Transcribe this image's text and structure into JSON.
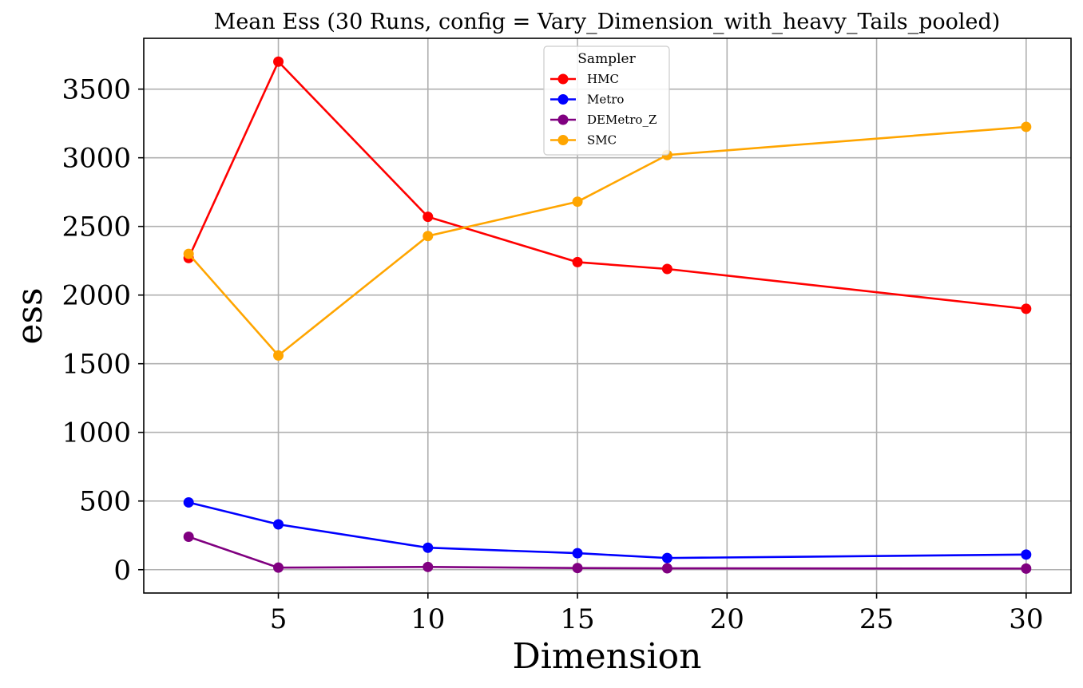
{
  "chart_data": {
    "type": "line",
    "title": "Mean Ess (30 Runs, config = Vary_Dimension_with_heavy_Tails_pooled)",
    "xlabel": "Dimension",
    "ylabel": "ess",
    "x": [
      2,
      5,
      10,
      15,
      18,
      30
    ],
    "xlim": [
      0.5,
      31.5
    ],
    "ylim": [
      -170,
      3870
    ],
    "xticks": [
      5,
      10,
      15,
      20,
      25,
      30
    ],
    "yticks": [
      0,
      500,
      1000,
      1500,
      2000,
      2500,
      3000,
      3500
    ],
    "grid": true,
    "legend": {
      "title": "Sampler",
      "position": "top-center"
    },
    "series": [
      {
        "name": "HMC",
        "color": "#ff0000",
        "values": [
          2270,
          3700,
          2570,
          2240,
          2190,
          1900
        ]
      },
      {
        "name": "Metro",
        "color": "#0000ff",
        "values": [
          490,
          330,
          160,
          120,
          85,
          110
        ]
      },
      {
        "name": "DEMetro_Z",
        "color": "#800080",
        "values": [
          240,
          15,
          20,
          12,
          10,
          8
        ]
      },
      {
        "name": "SMC",
        "color": "#ffa500",
        "values": [
          2300,
          1560,
          2430,
          2680,
          3020,
          3225
        ]
      }
    ]
  }
}
